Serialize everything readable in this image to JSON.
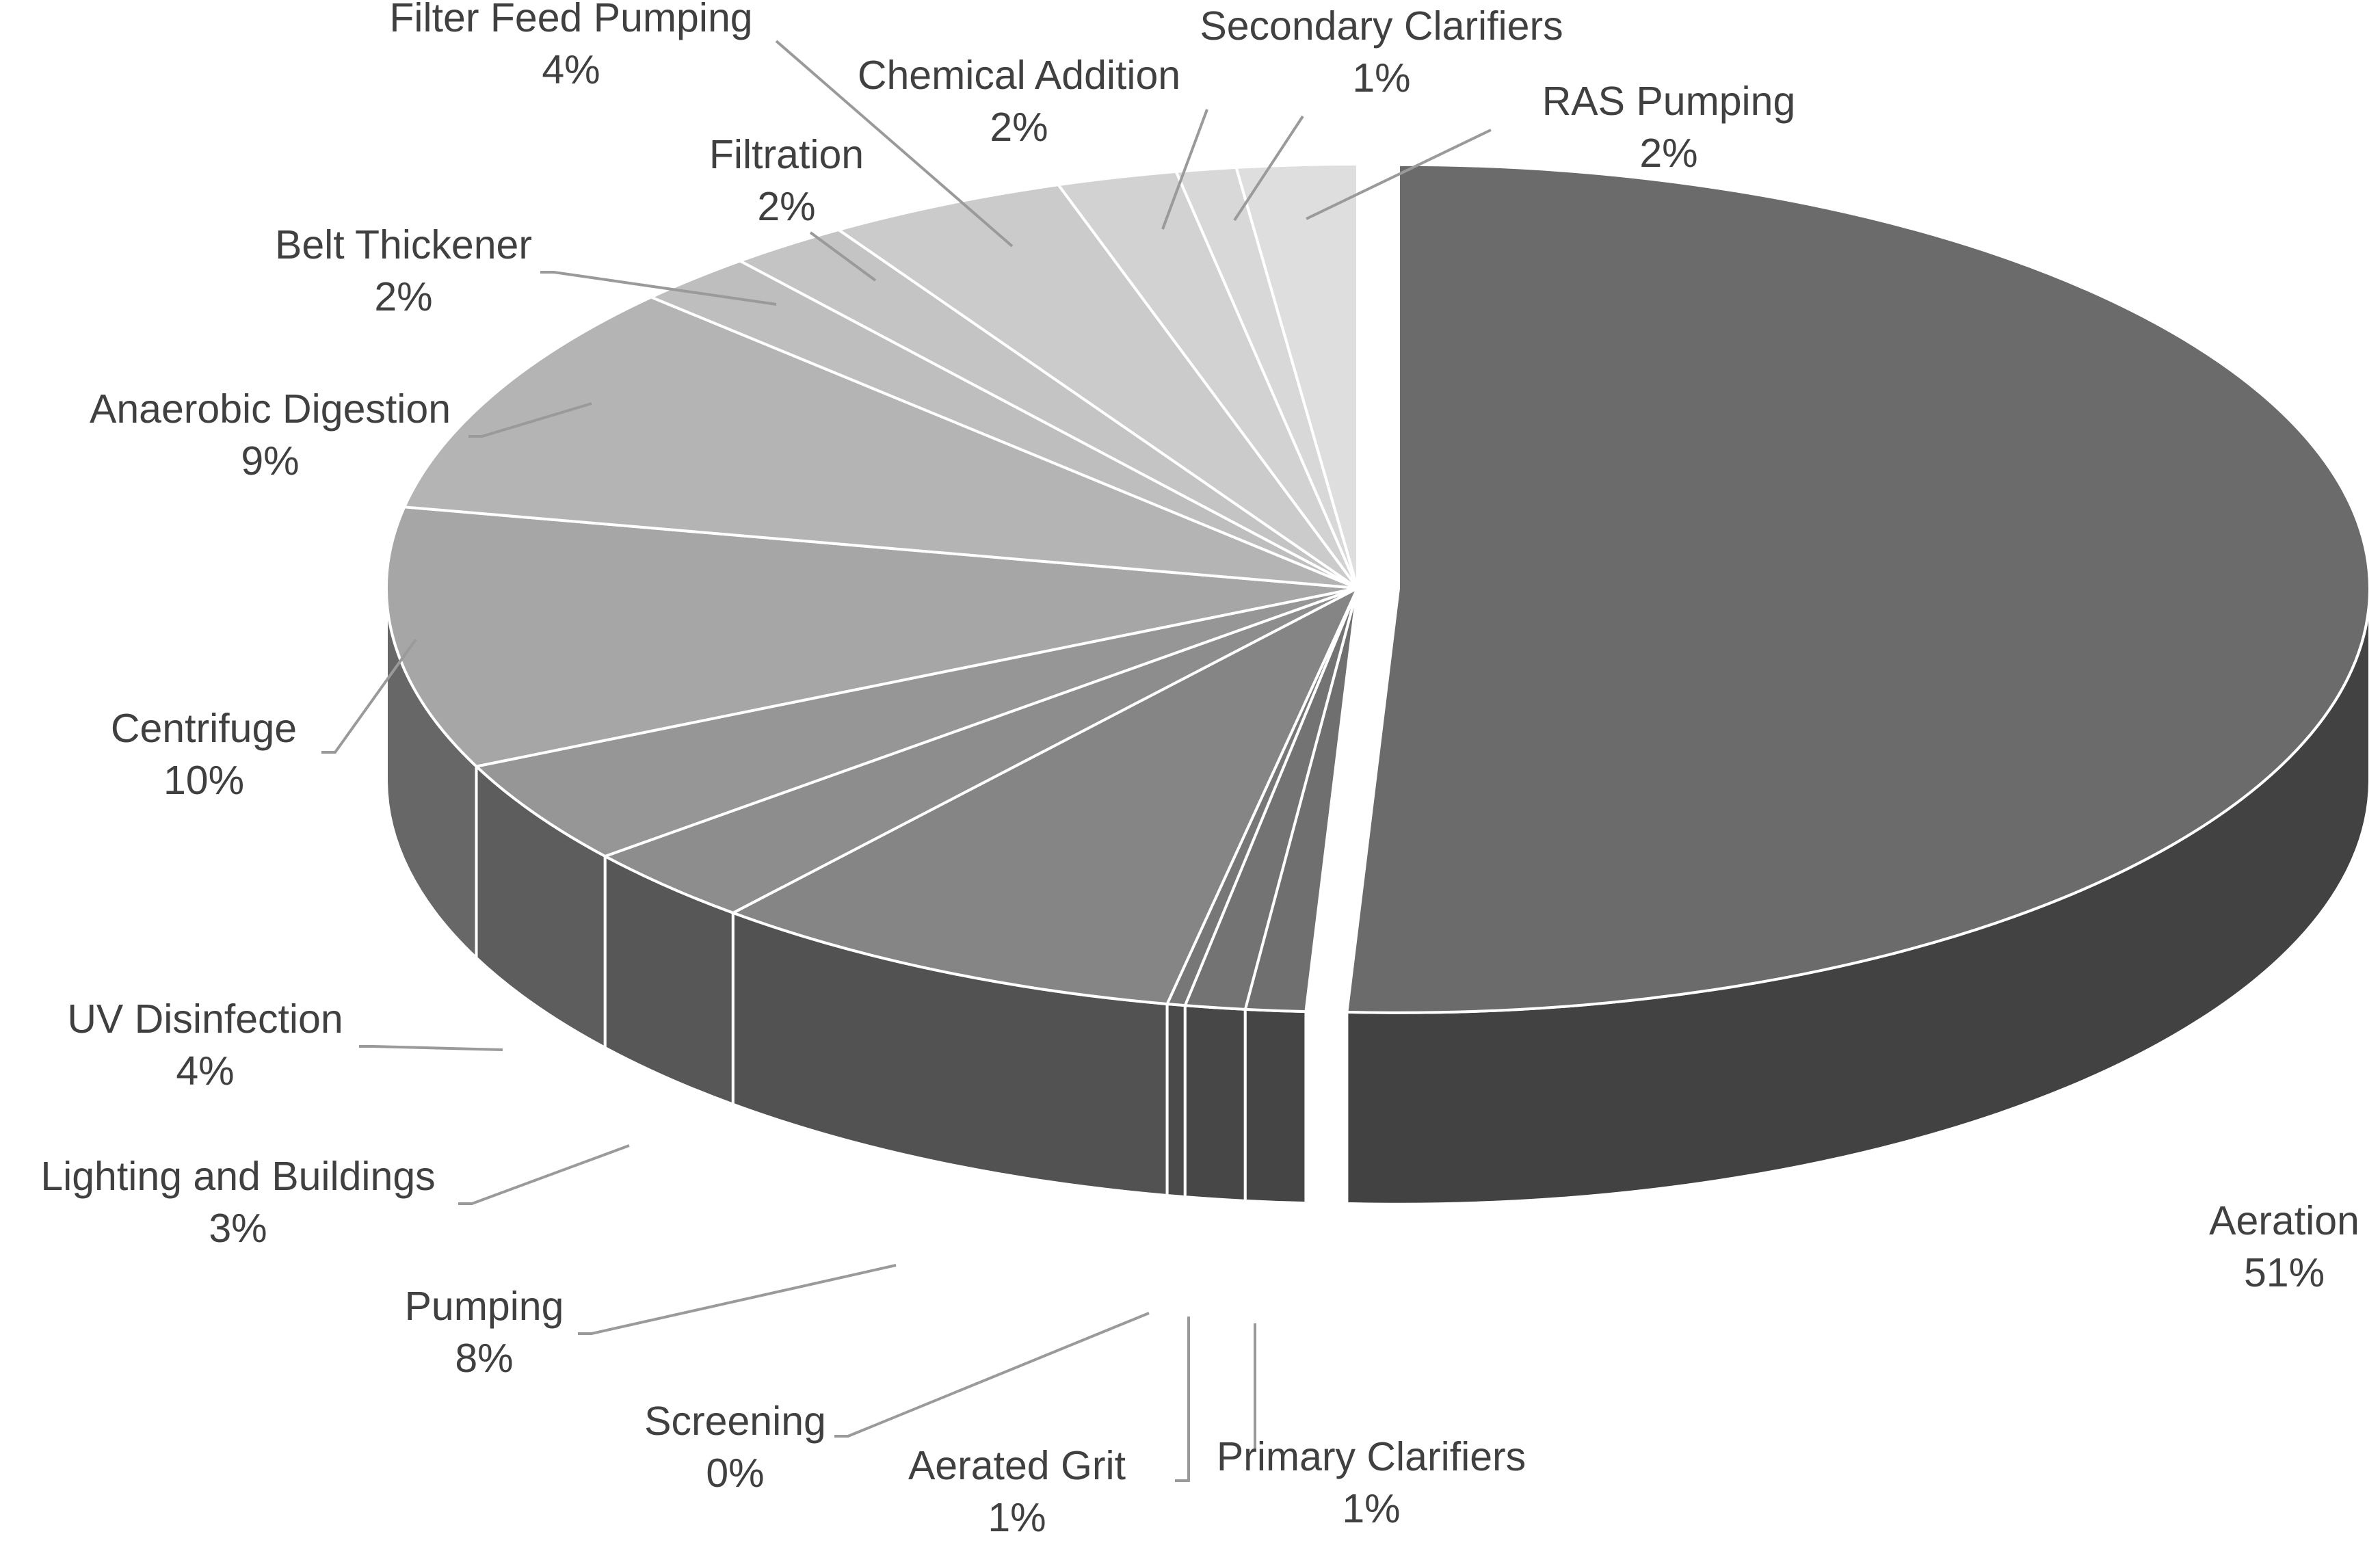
{
  "chart_data": {
    "type": "pie",
    "three_d": true,
    "exploded_slice": "Aeration",
    "title": "",
    "slices": [
      {
        "label": "Aeration",
        "percent_label": "51%",
        "value": 51,
        "color": "#6b6b6b"
      },
      {
        "label": "Primary Clarifiers",
        "percent_label": "1%",
        "value": 1,
        "color": "#6f6f6f"
      },
      {
        "label": "Aerated Grit",
        "percent_label": "1%",
        "value": 1,
        "color": "#737373"
      },
      {
        "label": "Screening",
        "percent_label": "0%",
        "value": 0.3,
        "color": "#777777"
      },
      {
        "label": "Pumping",
        "percent_label": "8%",
        "value": 8,
        "color": "#858585"
      },
      {
        "label": "Lighting and Buildings",
        "percent_label": "3%",
        "value": 3,
        "color": "#8d8d8d"
      },
      {
        "label": "UV Disinfection",
        "percent_label": "4%",
        "value": 4,
        "color": "#969696"
      },
      {
        "label": "Centrifuge",
        "percent_label": "10%",
        "value": 10,
        "color": "#a6a6a6"
      },
      {
        "label": "Anaerobic Digestion",
        "percent_label": "9%",
        "value": 9,
        "color": "#b4b4b4"
      },
      {
        "label": "Belt Thickener",
        "percent_label": "2%",
        "value": 2,
        "color": "#bebebe"
      },
      {
        "label": "Filtration",
        "percent_label": "2%",
        "value": 2,
        "color": "#c4c4c4"
      },
      {
        "label": "Filter Feed Pumping",
        "percent_label": "4%",
        "value": 4,
        "color": "#cbcbcb"
      },
      {
        "label": "Chemical Addition",
        "percent_label": "2%",
        "value": 2,
        "color": "#d2d2d2"
      },
      {
        "label": "Secondary Clarifiers",
        "percent_label": "1%",
        "value": 1,
        "color": "#d8d8d8"
      },
      {
        "label": "RAS Pumping",
        "percent_label": "2%",
        "value": 2,
        "color": "#dedede"
      }
    ]
  }
}
